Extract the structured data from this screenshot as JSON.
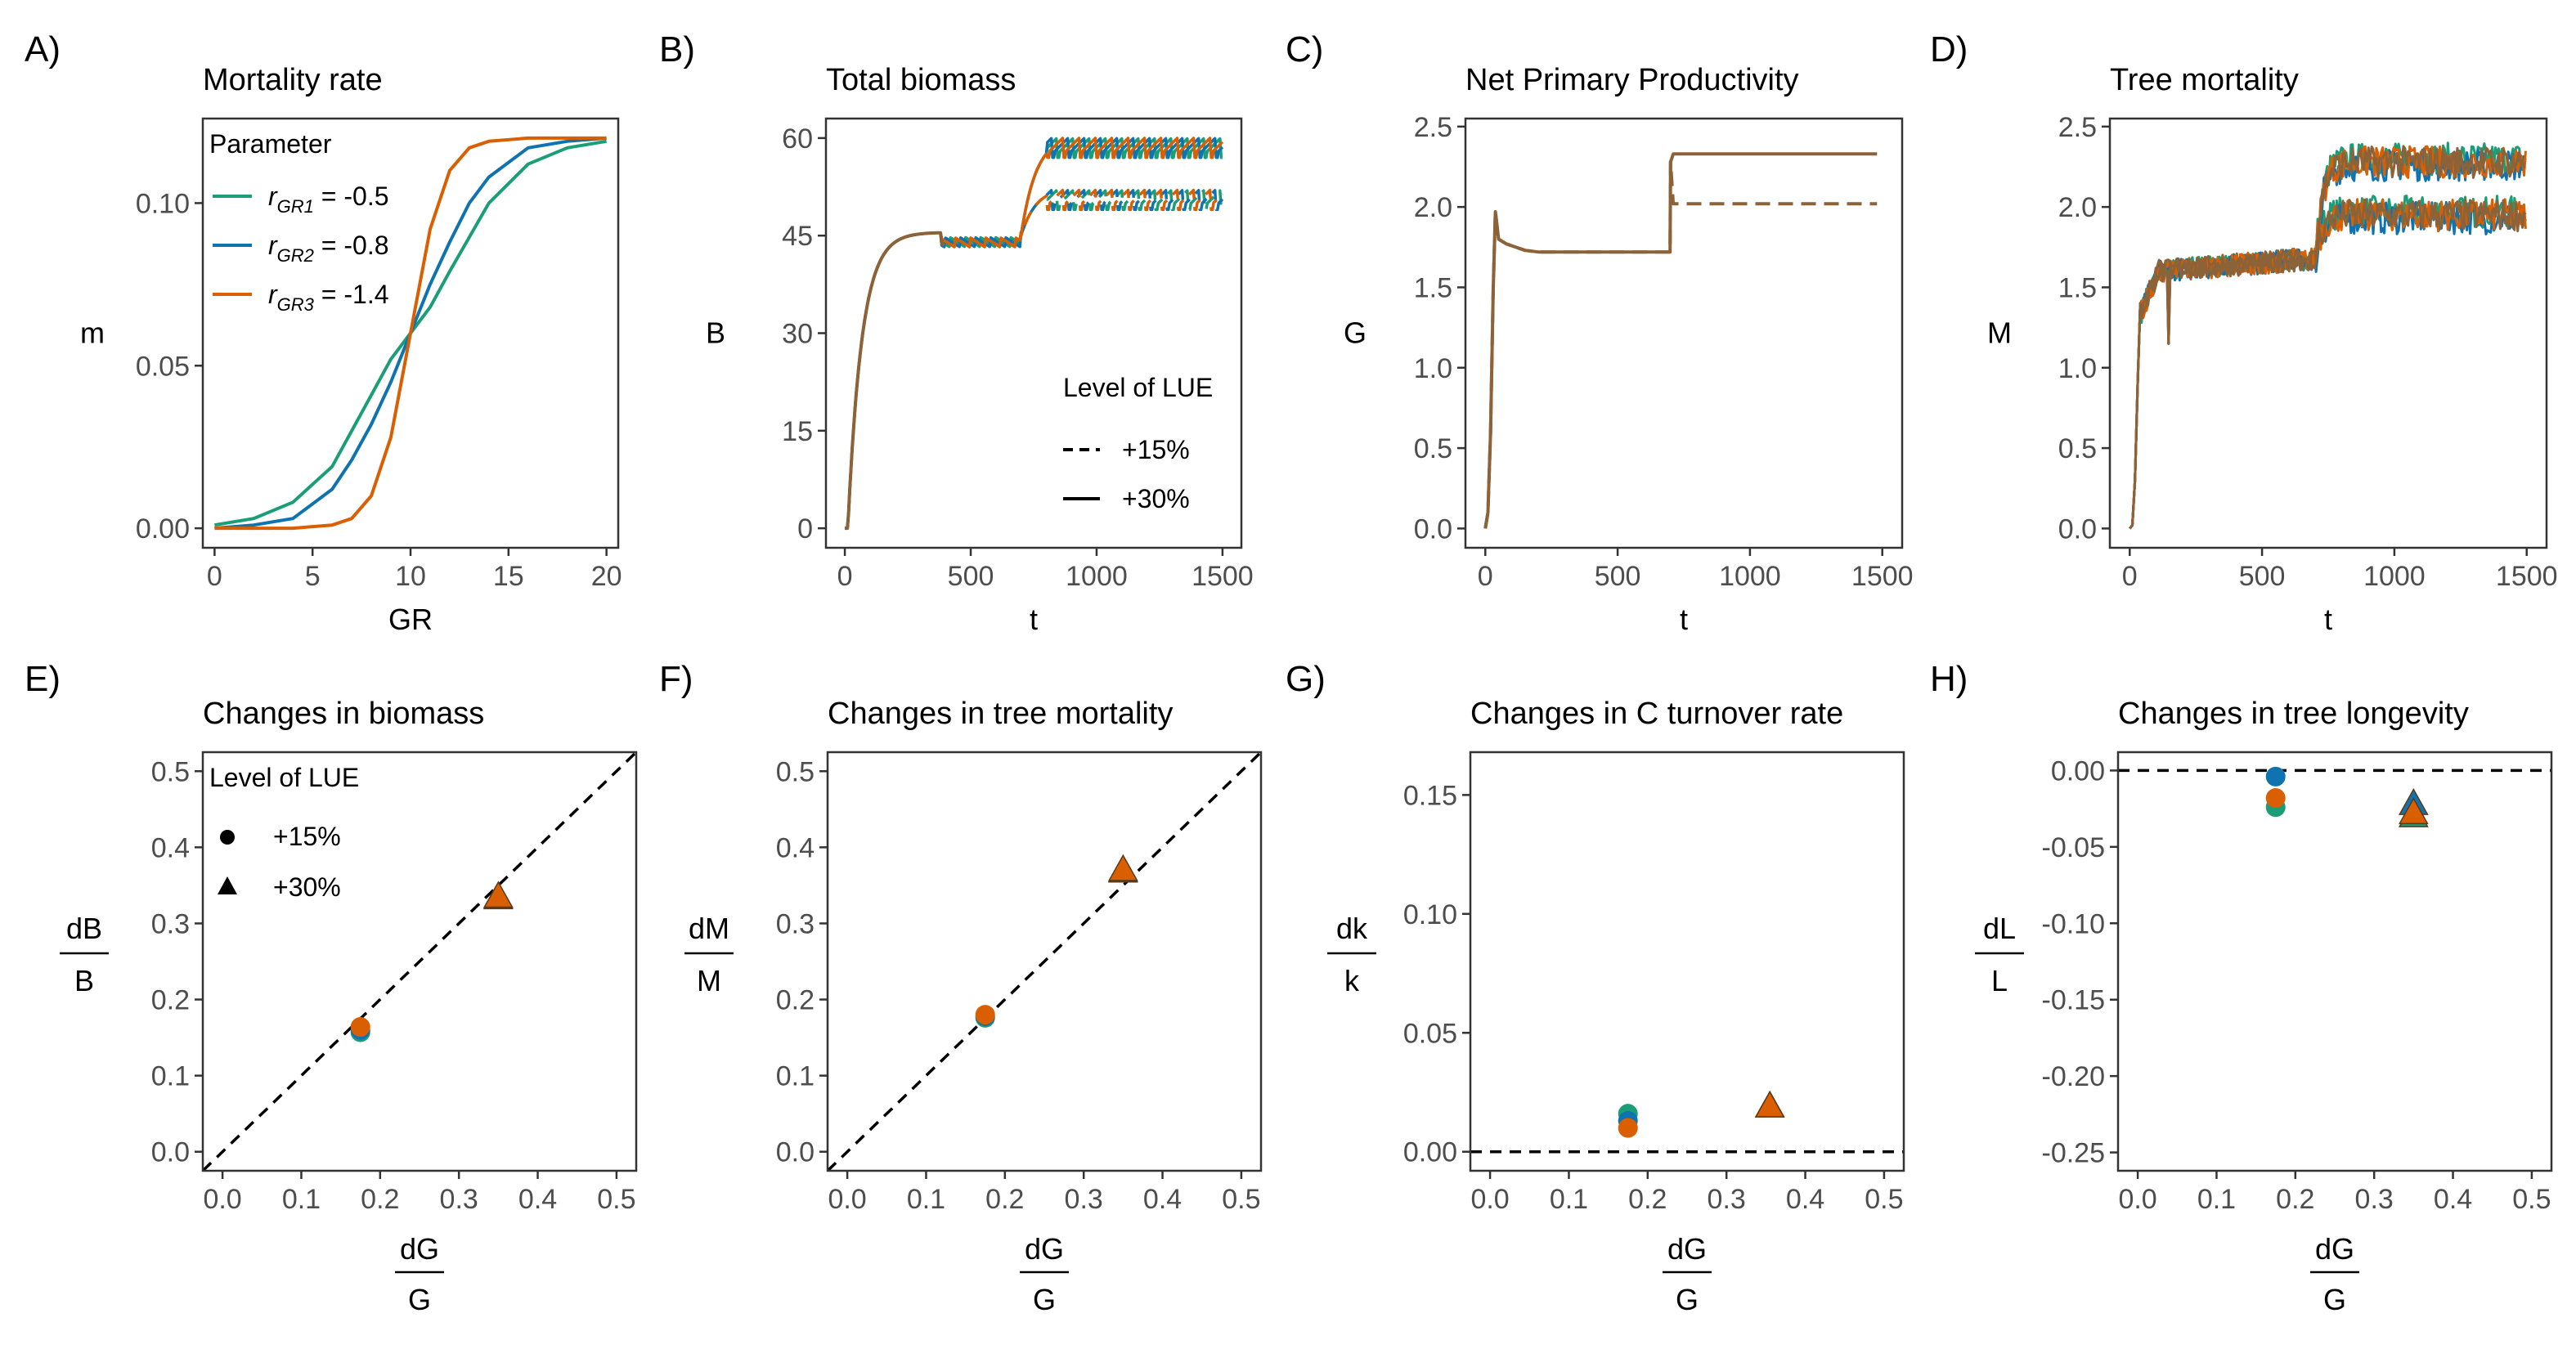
{
  "colors": {
    "c1": "#1b9e77",
    "c2": "#0f73b0",
    "c3": "#d95f02",
    "brown": "#8c6239",
    "ref": "#000000"
  },
  "chart_data": [
    {
      "id": "A",
      "tag": "A)",
      "title": "Mortality rate",
      "type": "line",
      "xlabel": "GR",
      "ylabel": "m",
      "xlim": [
        -0.6,
        20.6
      ],
      "ylim": [
        -0.006,
        0.126
      ],
      "xticks": [
        0,
        5,
        10,
        15,
        20
      ],
      "xticklabels": [
        "0",
        "5",
        "10",
        "15",
        "20"
      ],
      "yticks": [
        0,
        0.05,
        0.1
      ],
      "yticklabels": [
        "0.00",
        "0.05",
        "0.10"
      ],
      "legend": {
        "title": "Parameter",
        "position": "top-left",
        "items": [
          {
            "main": "r",
            "sub": "GR1",
            "rest": " = -0.5",
            "color": "#1b9e77"
          },
          {
            "main": "r",
            "sub": "GR2",
            "rest": " = -0.8",
            "color": "#0f73b0"
          },
          {
            "main": "r",
            "sub": "GR3",
            "rest": " = -1.4",
            "color": "#d95f02"
          }
        ]
      },
      "series": [
        {
          "color": "#1b9e77",
          "x": [
            0,
            2,
            4,
            6,
            8,
            9,
            10,
            11,
            12,
            14,
            16,
            18,
            20
          ],
          "y": [
            0.001,
            0.003,
            0.008,
            0.019,
            0.041,
            0.052,
            0.06,
            0.068,
            0.079,
            0.1,
            0.112,
            0.117,
            0.119
          ]
        },
        {
          "color": "#0f73b0",
          "x": [
            0,
            2,
            4,
            6,
            7,
            8,
            9,
            10,
            11,
            12,
            13,
            14,
            16,
            18,
            20
          ],
          "y": [
            0.0,
            0.001,
            0.003,
            0.012,
            0.021,
            0.032,
            0.045,
            0.06,
            0.075,
            0.088,
            0.1,
            0.108,
            0.117,
            0.119,
            0.12
          ]
        },
        {
          "color": "#d95f02",
          "x": [
            0,
            4,
            6,
            7,
            8,
            9,
            10,
            11,
            12,
            13,
            14,
            16,
            20
          ],
          "y": [
            0.0,
            0.0,
            0.001,
            0.003,
            0.01,
            0.028,
            0.06,
            0.092,
            0.11,
            0.117,
            0.119,
            0.12,
            0.12
          ]
        }
      ]
    },
    {
      "id": "B",
      "tag": "B)",
      "title": "Total biomass",
      "type": "line",
      "xlabel": "t",
      "ylabel": "B",
      "xlim": [
        -75,
        1575
      ],
      "ylim": [
        -3,
        63
      ],
      "xticks": [
        0,
        500,
        1000,
        1500
      ],
      "xticklabels": [
        "0",
        "500",
        "1000",
        "1500"
      ],
      "yticks": [
        0,
        15,
        30,
        45,
        60
      ],
      "yticklabels": [
        "0",
        "15",
        "30",
        "45",
        "60"
      ],
      "legend": {
        "title": "Level of LUE",
        "position": "bottom-right",
        "items": [
          {
            "label": "+15%",
            "dash": "dashed"
          },
          {
            "label": "+30%",
            "dash": "solid"
          }
        ]
      }
    },
    {
      "id": "C",
      "tag": "C)",
      "title": "Net Primary Productivity",
      "type": "line",
      "xlabel": "t",
      "ylabel": "G",
      "xlim": [
        -75,
        1575
      ],
      "ylim": [
        -0.12,
        2.55
      ],
      "xticks": [
        0,
        500,
        1000,
        1500
      ],
      "xticklabels": [
        "0",
        "500",
        "1000",
        "1500"
      ],
      "yticks": [
        0,
        0.5,
        1,
        1.5,
        2,
        2.5
      ],
      "yticklabels": [
        "0.0",
        "0.5",
        "1.0",
        "1.5",
        "2.0",
        "2.5"
      ]
    },
    {
      "id": "D",
      "tag": "D)",
      "title": "Tree mortality",
      "type": "line",
      "xlabel": "t",
      "ylabel": "M",
      "xlim": [
        -75,
        1575
      ],
      "ylim": [
        -0.12,
        2.55
      ],
      "xticks": [
        0,
        500,
        1000,
        1500
      ],
      "xticklabels": [
        "0",
        "500",
        "1000",
        "1500"
      ],
      "yticks": [
        0,
        0.5,
        1,
        1.5,
        2,
        2.5
      ],
      "yticklabels": [
        "0.0",
        "0.5",
        "1.0",
        "1.5",
        "2.0",
        "2.5"
      ]
    },
    {
      "id": "E",
      "tag": "E)",
      "title": "Changes in biomass",
      "type": "scatter",
      "xlabel_num": "dG",
      "xlabel_den": "G",
      "ylabel_num": "dB",
      "ylabel_den": "B",
      "xlim": [
        -0.025,
        0.525
      ],
      "ylim": [
        -0.025,
        0.525
      ],
      "xticks": [
        0,
        0.1,
        0.2,
        0.3,
        0.4,
        0.5
      ],
      "xticklabels": [
        "0.0",
        "0.1",
        "0.2",
        "0.3",
        "0.4",
        "0.5"
      ],
      "yticks": [
        0,
        0.1,
        0.2,
        0.3,
        0.4,
        0.5
      ],
      "yticklabels": [
        "0.0",
        "0.1",
        "0.2",
        "0.3",
        "0.4",
        "0.5"
      ],
      "reference": "diagonal",
      "legend": {
        "title": "Level of LUE",
        "position": "top-left",
        "items": [
          {
            "label": "+15%",
            "shape": "circle"
          },
          {
            "label": "+30%",
            "shape": "triangle"
          }
        ]
      },
      "points": [
        {
          "x": 0.175,
          "y": 0.157,
          "shape": "circle",
          "color": "#1b9e77"
        },
        {
          "x": 0.175,
          "y": 0.16,
          "shape": "circle",
          "color": "#0f73b0"
        },
        {
          "x": 0.175,
          "y": 0.164,
          "shape": "circle",
          "color": "#d95f02"
        },
        {
          "x": 0.35,
          "y": 0.333,
          "shape": "triangle",
          "color": "#1b9e77"
        },
        {
          "x": 0.35,
          "y": 0.334,
          "shape": "triangle",
          "color": "#0f73b0"
        },
        {
          "x": 0.35,
          "y": 0.335,
          "shape": "triangle",
          "color": "#d95f02"
        }
      ]
    },
    {
      "id": "F",
      "tag": "F)",
      "title": "Changes in tree mortality",
      "type": "scatter",
      "xlabel_num": "dG",
      "xlabel_den": "G",
      "ylabel_num": "dM",
      "ylabel_den": "M",
      "xlim": [
        -0.025,
        0.525
      ],
      "ylim": [
        -0.025,
        0.525
      ],
      "xticks": [
        0,
        0.1,
        0.2,
        0.3,
        0.4,
        0.5
      ],
      "xticklabels": [
        "0.0",
        "0.1",
        "0.2",
        "0.3",
        "0.4",
        "0.5"
      ],
      "yticks": [
        0,
        0.1,
        0.2,
        0.3,
        0.4,
        0.5
      ],
      "yticklabels": [
        "0.0",
        "0.1",
        "0.2",
        "0.3",
        "0.4",
        "0.5"
      ],
      "reference": "diagonal",
      "points": [
        {
          "x": 0.175,
          "y": 0.176,
          "shape": "circle",
          "color": "#1b9e77"
        },
        {
          "x": 0.175,
          "y": 0.178,
          "shape": "circle",
          "color": "#0f73b0"
        },
        {
          "x": 0.175,
          "y": 0.18,
          "shape": "circle",
          "color": "#d95f02"
        },
        {
          "x": 0.35,
          "y": 0.368,
          "shape": "triangle",
          "color": "#1b9e77"
        },
        {
          "x": 0.35,
          "y": 0.369,
          "shape": "triangle",
          "color": "#0f73b0"
        },
        {
          "x": 0.35,
          "y": 0.37,
          "shape": "triangle",
          "color": "#d95f02"
        }
      ]
    },
    {
      "id": "G",
      "tag": "G)",
      "title": "Changes in C turnover rate",
      "type": "scatter",
      "xlabel_num": "dG",
      "xlabel_den": "G",
      "ylabel_num": "dk",
      "ylabel_den": "k",
      "xlim": [
        -0.025,
        0.525
      ],
      "ylim": [
        -0.008,
        0.168
      ],
      "xticks": [
        0,
        0.1,
        0.2,
        0.3,
        0.4,
        0.5
      ],
      "xticklabels": [
        "0.0",
        "0.1",
        "0.2",
        "0.3",
        "0.4",
        "0.5"
      ],
      "yticks": [
        0,
        0.05,
        0.1,
        0.15
      ],
      "yticklabels": [
        "0.00",
        "0.05",
        "0.10",
        "0.15"
      ],
      "reference": "zero",
      "points": [
        {
          "x": 0.175,
          "y": 0.016,
          "shape": "circle",
          "color": "#1b9e77"
        },
        {
          "x": 0.175,
          "y": 0.013,
          "shape": "circle",
          "color": "#0f73b0"
        },
        {
          "x": 0.175,
          "y": 0.01,
          "shape": "circle",
          "color": "#d95f02"
        },
        {
          "x": 0.355,
          "y": 0.019,
          "shape": "triangle",
          "color": "#1b9e77"
        },
        {
          "x": 0.355,
          "y": 0.019,
          "shape": "triangle",
          "color": "#0f73b0"
        },
        {
          "x": 0.355,
          "y": 0.019,
          "shape": "triangle",
          "color": "#d95f02"
        }
      ]
    },
    {
      "id": "H",
      "tag": "H)",
      "title": "Changes in tree longevity",
      "type": "scatter",
      "xlabel_num": "dG",
      "xlabel_den": "G",
      "ylabel_num": "dL",
      "ylabel_den": "L",
      "xlim": [
        -0.025,
        0.525
      ],
      "ylim": [
        -0.262,
        0.012
      ],
      "xticks": [
        0,
        0.1,
        0.2,
        0.3,
        0.4,
        0.5
      ],
      "xticklabels": [
        "0.0",
        "0.1",
        "0.2",
        "0.3",
        "0.4",
        "0.5"
      ],
      "yticks": [
        0,
        -0.05,
        -0.1,
        -0.15,
        -0.2,
        -0.25
      ],
      "yticklabels": [
        "0.00",
        "-0.05",
        "-0.10",
        "-0.15",
        "-0.20",
        "-0.25"
      ],
      "reference": "zero",
      "points": [
        {
          "x": 0.175,
          "y": -0.024,
          "shape": "circle",
          "color": "#1b9e77"
        },
        {
          "x": 0.175,
          "y": -0.004,
          "shape": "circle",
          "color": "#0f73b0"
        },
        {
          "x": 0.175,
          "y": -0.018,
          "shape": "circle",
          "color": "#d95f02"
        },
        {
          "x": 0.35,
          "y": -0.03,
          "shape": "triangle",
          "color": "#1b9e77"
        },
        {
          "x": 0.35,
          "y": -0.022,
          "shape": "triangle",
          "color": "#0f73b0"
        },
        {
          "x": 0.35,
          "y": -0.028,
          "shape": "triangle",
          "color": "#d95f02"
        }
      ]
    }
  ]
}
